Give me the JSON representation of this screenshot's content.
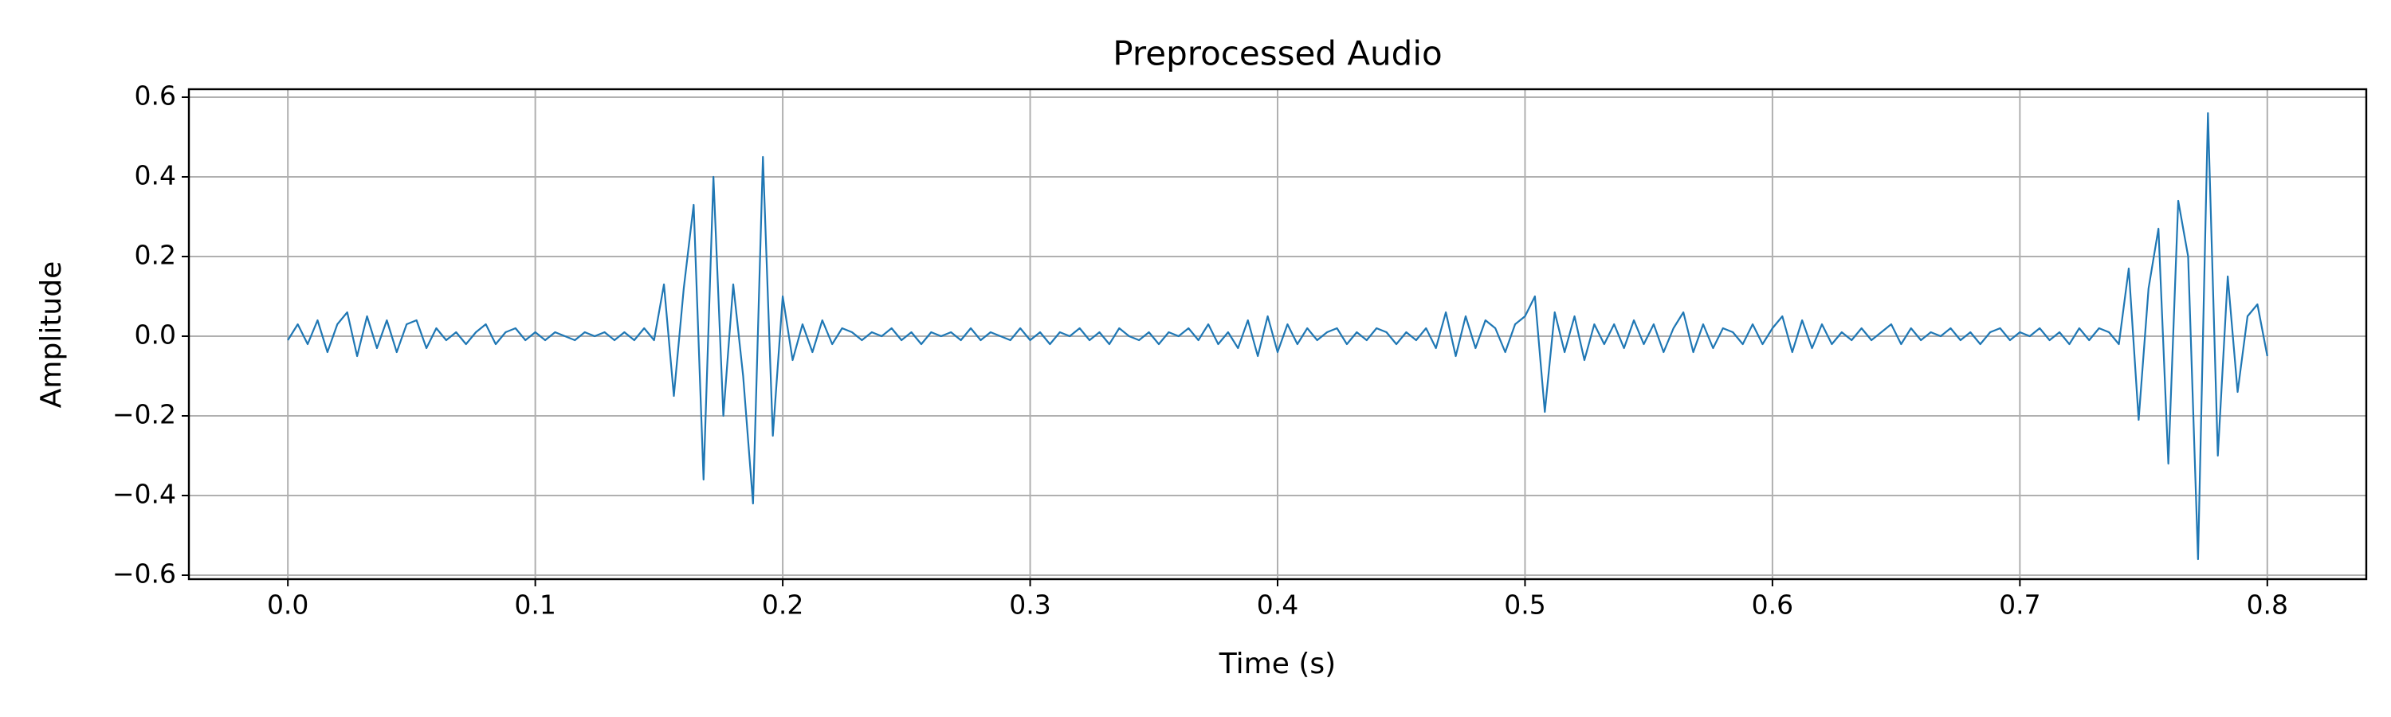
{
  "chart_data": {
    "type": "line",
    "title": "Preprocessed Audio",
    "x_label": "Time (s)",
    "y_label": "Amplitude",
    "color": "#1f77b4",
    "grid": true,
    "xlim": [
      -0.04,
      0.84
    ],
    "ylim": [
      -0.61,
      0.62
    ],
    "xticks": [
      {
        "value": 0,
        "label": "0.0"
      },
      0.1,
      0.2,
      0.3,
      0.4,
      0.5,
      0.6,
      0.7,
      0.8
    ],
    "yticks": [
      {
        "value": -0.6,
        "label": "−0.6"
      },
      {
        "value": -0.4,
        "label": "−0.4"
      },
      {
        "value": -0.2,
        "label": "−0.2"
      },
      {
        "value": 0,
        "label": "0.0"
      },
      0.2,
      0.4,
      0.6
    ],
    "x": [
      0,
      0.004,
      0.008,
      0.012,
      0.016,
      0.02,
      0.024,
      0.028,
      0.032,
      0.036,
      0.04,
      0.044,
      0.048,
      0.052,
      0.056,
      0.06,
      0.064,
      0.068,
      0.072,
      0.076,
      0.08,
      0.084,
      0.088,
      0.092,
      0.096,
      0.1,
      0.104,
      0.108,
      0.112,
      0.116,
      0.12,
      0.124,
      0.128,
      0.132,
      0.136,
      0.14,
      0.144,
      0.148,
      0.152,
      0.156,
      0.16,
      0.164,
      0.168,
      0.172,
      0.176,
      0.18,
      0.184,
      0.188,
      0.192,
      0.196,
      0.2,
      0.204,
      0.208,
      0.212,
      0.216,
      0.22,
      0.224,
      0.228,
      0.232,
      0.236,
      0.24,
      0.244,
      0.248,
      0.252,
      0.256,
      0.26,
      0.264,
      0.268,
      0.272,
      0.276,
      0.28,
      0.284,
      0.288,
      0.292,
      0.296,
      0.3,
      0.304,
      0.308,
      0.312,
      0.316,
      0.32,
      0.324,
      0.328,
      0.332,
      0.336,
      0.34,
      0.344,
      0.348,
      0.352,
      0.356,
      0.36,
      0.364,
      0.368,
      0.372,
      0.376,
      0.38,
      0.384,
      0.388,
      0.392,
      0.396,
      0.4,
      0.404,
      0.408,
      0.412,
      0.416,
      0.42,
      0.424,
      0.428,
      0.432,
      0.436,
      0.44,
      0.444,
      0.448,
      0.452,
      0.456,
      0.46,
      0.464,
      0.468,
      0.472,
      0.476,
      0.48,
      0.484,
      0.488,
      0.492,
      0.496,
      0.5,
      0.504,
      0.508,
      0.512,
      0.516,
      0.52,
      0.524,
      0.528,
      0.532,
      0.536,
      0.54,
      0.544,
      0.548,
      0.552,
      0.556,
      0.56,
      0.564,
      0.568,
      0.572,
      0.576,
      0.58,
      0.584,
      0.588,
      0.592,
      0.596,
      0.6,
      0.604,
      0.608,
      0.612,
      0.616,
      0.62,
      0.624,
      0.628,
      0.632,
      0.636,
      0.64,
      0.644,
      0.648,
      0.652,
      0.656,
      0.66,
      0.664,
      0.668,
      0.672,
      0.676,
      0.68,
      0.684,
      0.688,
      0.692,
      0.696,
      0.7,
      0.704,
      0.708,
      0.712,
      0.716,
      0.72,
      0.724,
      0.728,
      0.732,
      0.736,
      0.74,
      0.744,
      0.748,
      0.752,
      0.756,
      0.76,
      0.764,
      0.768,
      0.772,
      0.776,
      0.78,
      0.784,
      0.788,
      0.792,
      0.796,
      0.8
    ],
    "values": [
      -0.01,
      0.03,
      -0.02,
      0.04,
      -0.04,
      0.03,
      0.06,
      -0.05,
      0.05,
      -0.03,
      0.04,
      -0.04,
      0.03,
      0.04,
      -0.03,
      0.02,
      -0.01,
      0.01,
      -0.02,
      0.01,
      0.03,
      -0.02,
      0.01,
      0.02,
      -0.01,
      0.01,
      -0.01,
      0.01,
      0.0,
      -0.01,
      0.01,
      0.0,
      0.01,
      -0.01,
      0.01,
      -0.01,
      0.02,
      -0.01,
      0.13,
      -0.15,
      0.12,
      0.33,
      -0.36,
      0.4,
      -0.2,
      0.13,
      -0.1,
      -0.42,
      0.45,
      -0.25,
      0.1,
      -0.06,
      0.03,
      -0.04,
      0.04,
      -0.02,
      0.02,
      0.01,
      -0.01,
      0.01,
      0.0,
      0.02,
      -0.01,
      0.01,
      -0.02,
      0.01,
      0.0,
      0.01,
      -0.01,
      0.02,
      -0.01,
      0.01,
      0.0,
      -0.01,
      0.02,
      -0.01,
      0.01,
      -0.02,
      0.01,
      0.0,
      0.02,
      -0.01,
      0.01,
      -0.02,
      0.02,
      0.0,
      -0.01,
      0.01,
      -0.02,
      0.01,
      0.0,
      0.02,
      -0.01,
      0.03,
      -0.02,
      0.01,
      -0.03,
      0.04,
      -0.05,
      0.05,
      -0.04,
      0.03,
      -0.02,
      0.02,
      -0.01,
      0.01,
      0.02,
      -0.02,
      0.01,
      -0.01,
      0.02,
      0.01,
      -0.02,
      0.01,
      -0.01,
      0.02,
      -0.03,
      0.06,
      -0.05,
      0.05,
      -0.03,
      0.04,
      0.02,
      -0.04,
      0.03,
      0.05,
      0.1,
      -0.19,
      0.06,
      -0.04,
      0.05,
      -0.06,
      0.03,
      -0.02,
      0.03,
      -0.03,
      0.04,
      -0.02,
      0.03,
      -0.04,
      0.02,
      0.06,
      -0.04,
      0.03,
      -0.03,
      0.02,
      0.01,
      -0.02,
      0.03,
      -0.02,
      0.02,
      0.05,
      -0.04,
      0.04,
      -0.03,
      0.03,
      -0.02,
      0.01,
      -0.01,
      0.02,
      -0.01,
      0.01,
      0.03,
      -0.02,
      0.02,
      -0.01,
      0.01,
      0.0,
      0.02,
      -0.01,
      0.01,
      -0.02,
      0.01,
      0.02,
      -0.01,
      0.01,
      0.0,
      0.02,
      -0.01,
      0.01,
      -0.02,
      0.02,
      -0.01,
      0.02,
      0.01,
      -0.02,
      0.17,
      -0.21,
      0.12,
      0.27,
      -0.32,
      0.34,
      0.2,
      -0.56,
      0.56,
      -0.3,
      0.15,
      -0.14,
      0.05,
      0.08,
      -0.05
    ]
  }
}
